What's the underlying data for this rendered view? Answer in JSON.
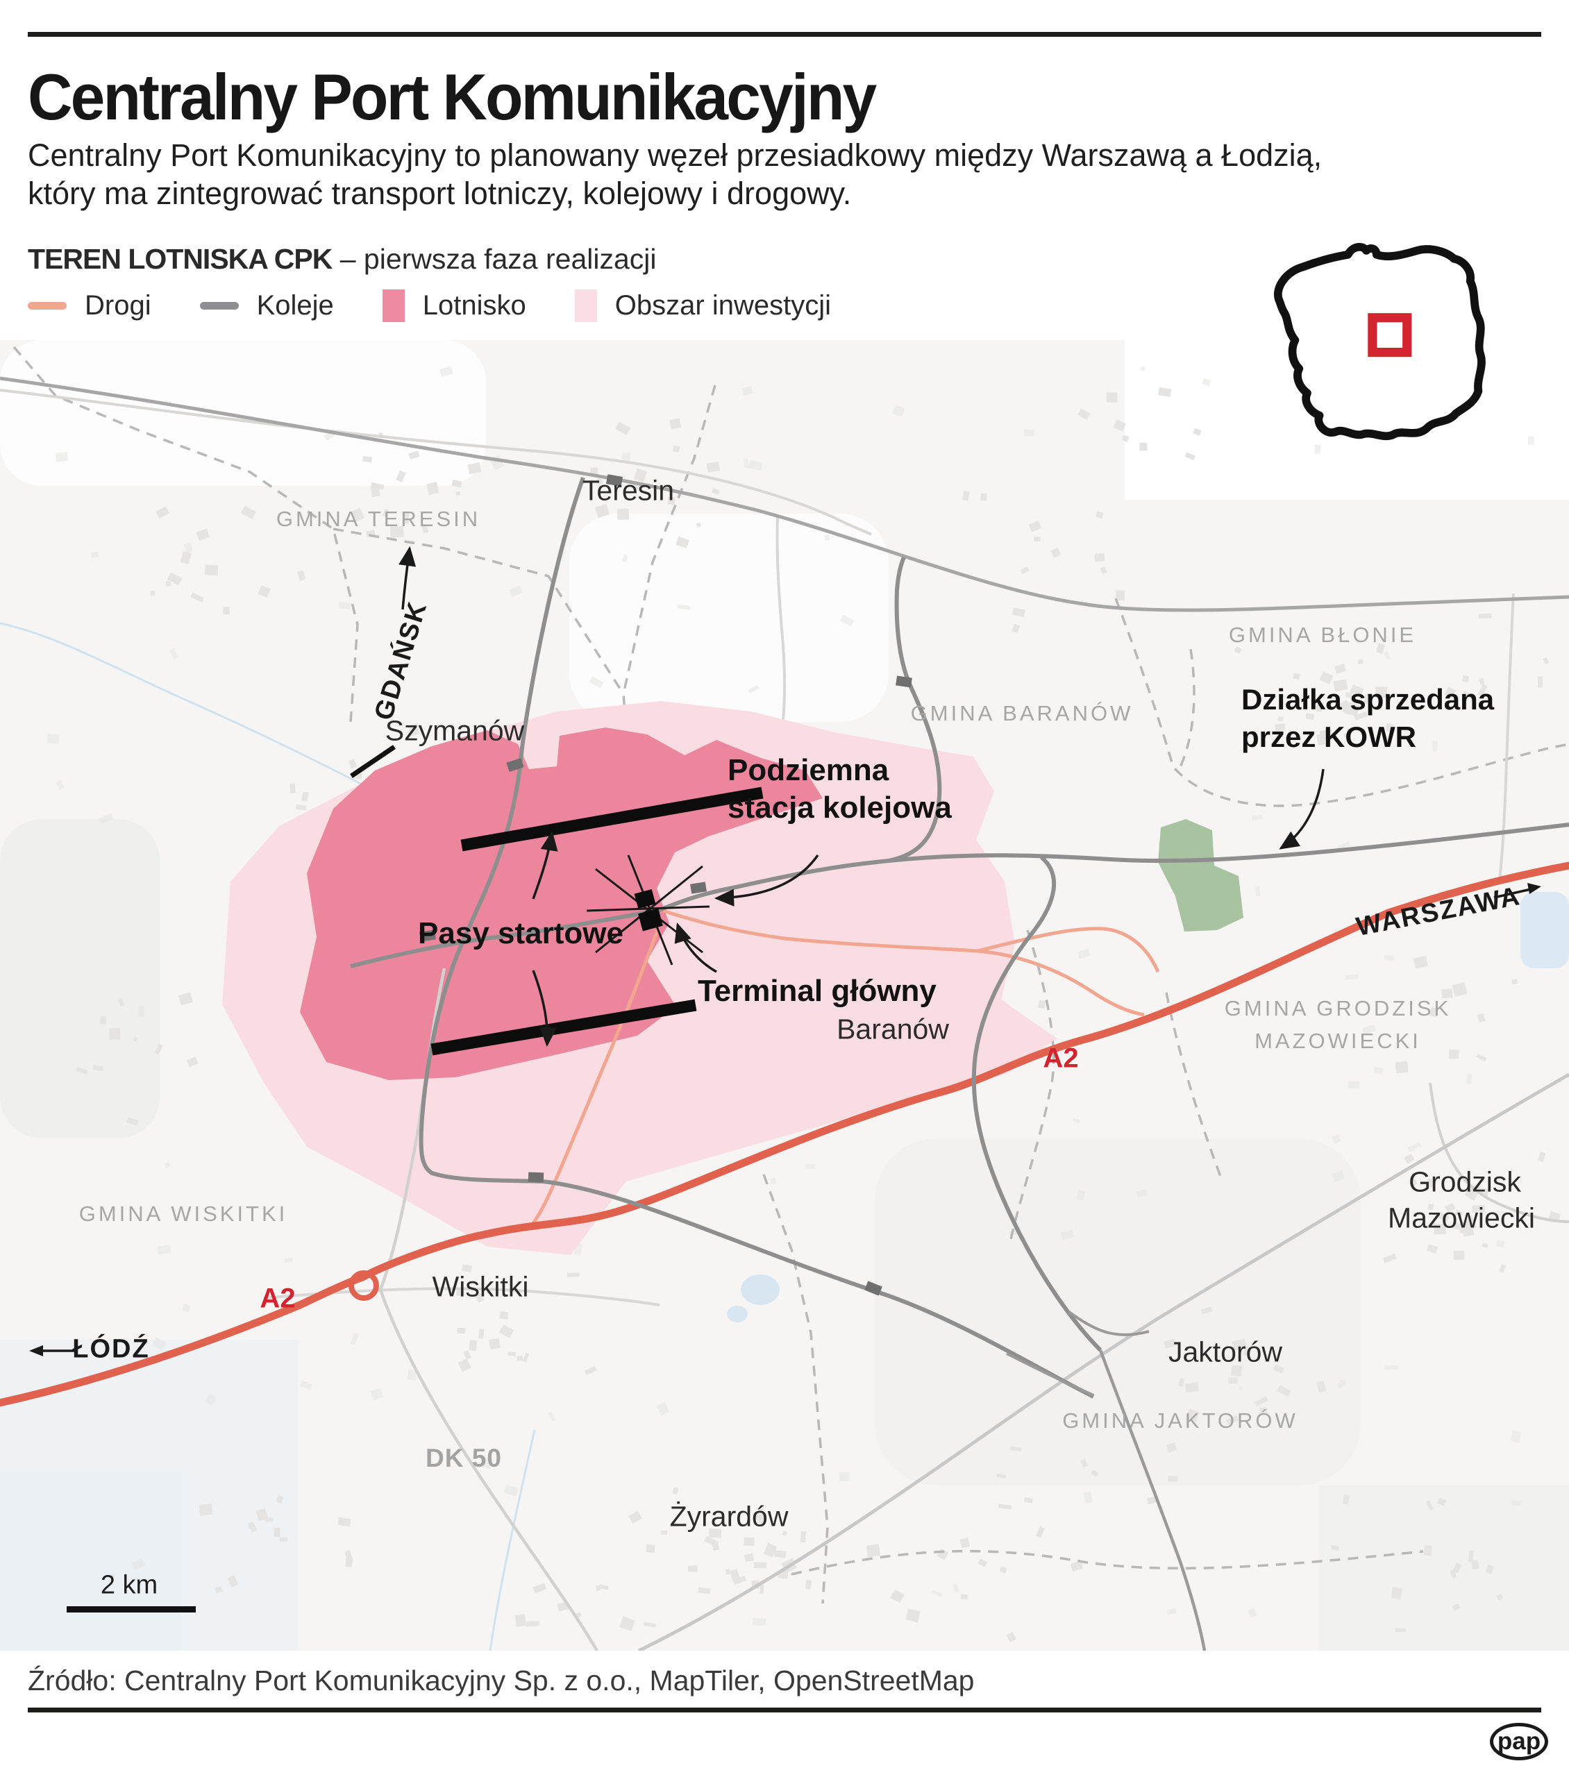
{
  "header": {
    "title": "Centralny Port Komunikacyjny",
    "description_line1": "Centralny Port Komunikacyjny to planowany węzeł przesiadkowy między Warszawą a Łodzią,",
    "description_line2": "który ma zintegrować transport lotniczy, kolejowy i drogowy."
  },
  "legend": {
    "heading_bold": "TEREN LOTNISKA CPK",
    "heading_rest": "– pierwsza faza realizacji",
    "items": [
      {
        "label": "Drogi",
        "color": "#f2a58f",
        "type": "line"
      },
      {
        "label": "Koleje",
        "color": "#8d8d92",
        "type": "line"
      },
      {
        "label": "Lotnisko",
        "color": "#ef8ba1",
        "type": "area"
      },
      {
        "label": "Obszar inwestycji",
        "color": "#fbdee5",
        "type": "area"
      }
    ]
  },
  "map": {
    "labels": {
      "gmina_teresin": "GMINA TERESIN",
      "teresin": "Teresin",
      "gmina_blonie": "GMINA BŁONIE",
      "gmina_baranow": "GMINA BARANÓW",
      "szymanow": "Szymanów",
      "gdansk": "GDAŃSK",
      "kowr_line1": "Działka sprzedana",
      "kowr_line2": "przez KOWR",
      "station_line1": "Podziemna",
      "station_line2": "stacja kolejowa",
      "runways": "Pasy startowe",
      "terminal": "Terminal główny",
      "baranow": "Baranów",
      "gmina_grodzisk_line1": "GMINA GRODZISK",
      "gmina_grodzisk_line2": "MAZOWIECKI",
      "grodzisk_line1": "Grodzisk",
      "grodzisk_line2": "Mazowiecki",
      "a2_east": "A2",
      "a2_west": "A2",
      "gmina_wiskitki": "GMINA WISKITKI",
      "wiskitki": "Wiskitki",
      "lodz": "ŁÓDŹ",
      "warszawa": "WARSZAWA",
      "jaktorow": "Jaktorów",
      "gmina_jaktorow": "GMINA JAKTORÓW",
      "zyrardow": "Żyrardów",
      "dk50": "DK 50",
      "scale": "2 km"
    },
    "colors": {
      "airport": "#ec869c",
      "investment_area": "#fadde3",
      "roads": "#f2a58f",
      "railways": "#8e8e8e",
      "a2_motorway": "#e0614d",
      "a2_label": "#d2232e",
      "kowr_plot": "#a8c3a0"
    }
  },
  "inset": {
    "marker_color": "#d2232e"
  },
  "footer": {
    "source": "Źródło: Centralny Port Komunikacyjny Sp. z o.o., MapTiler, OpenStreetMap",
    "logo": "pap"
  }
}
